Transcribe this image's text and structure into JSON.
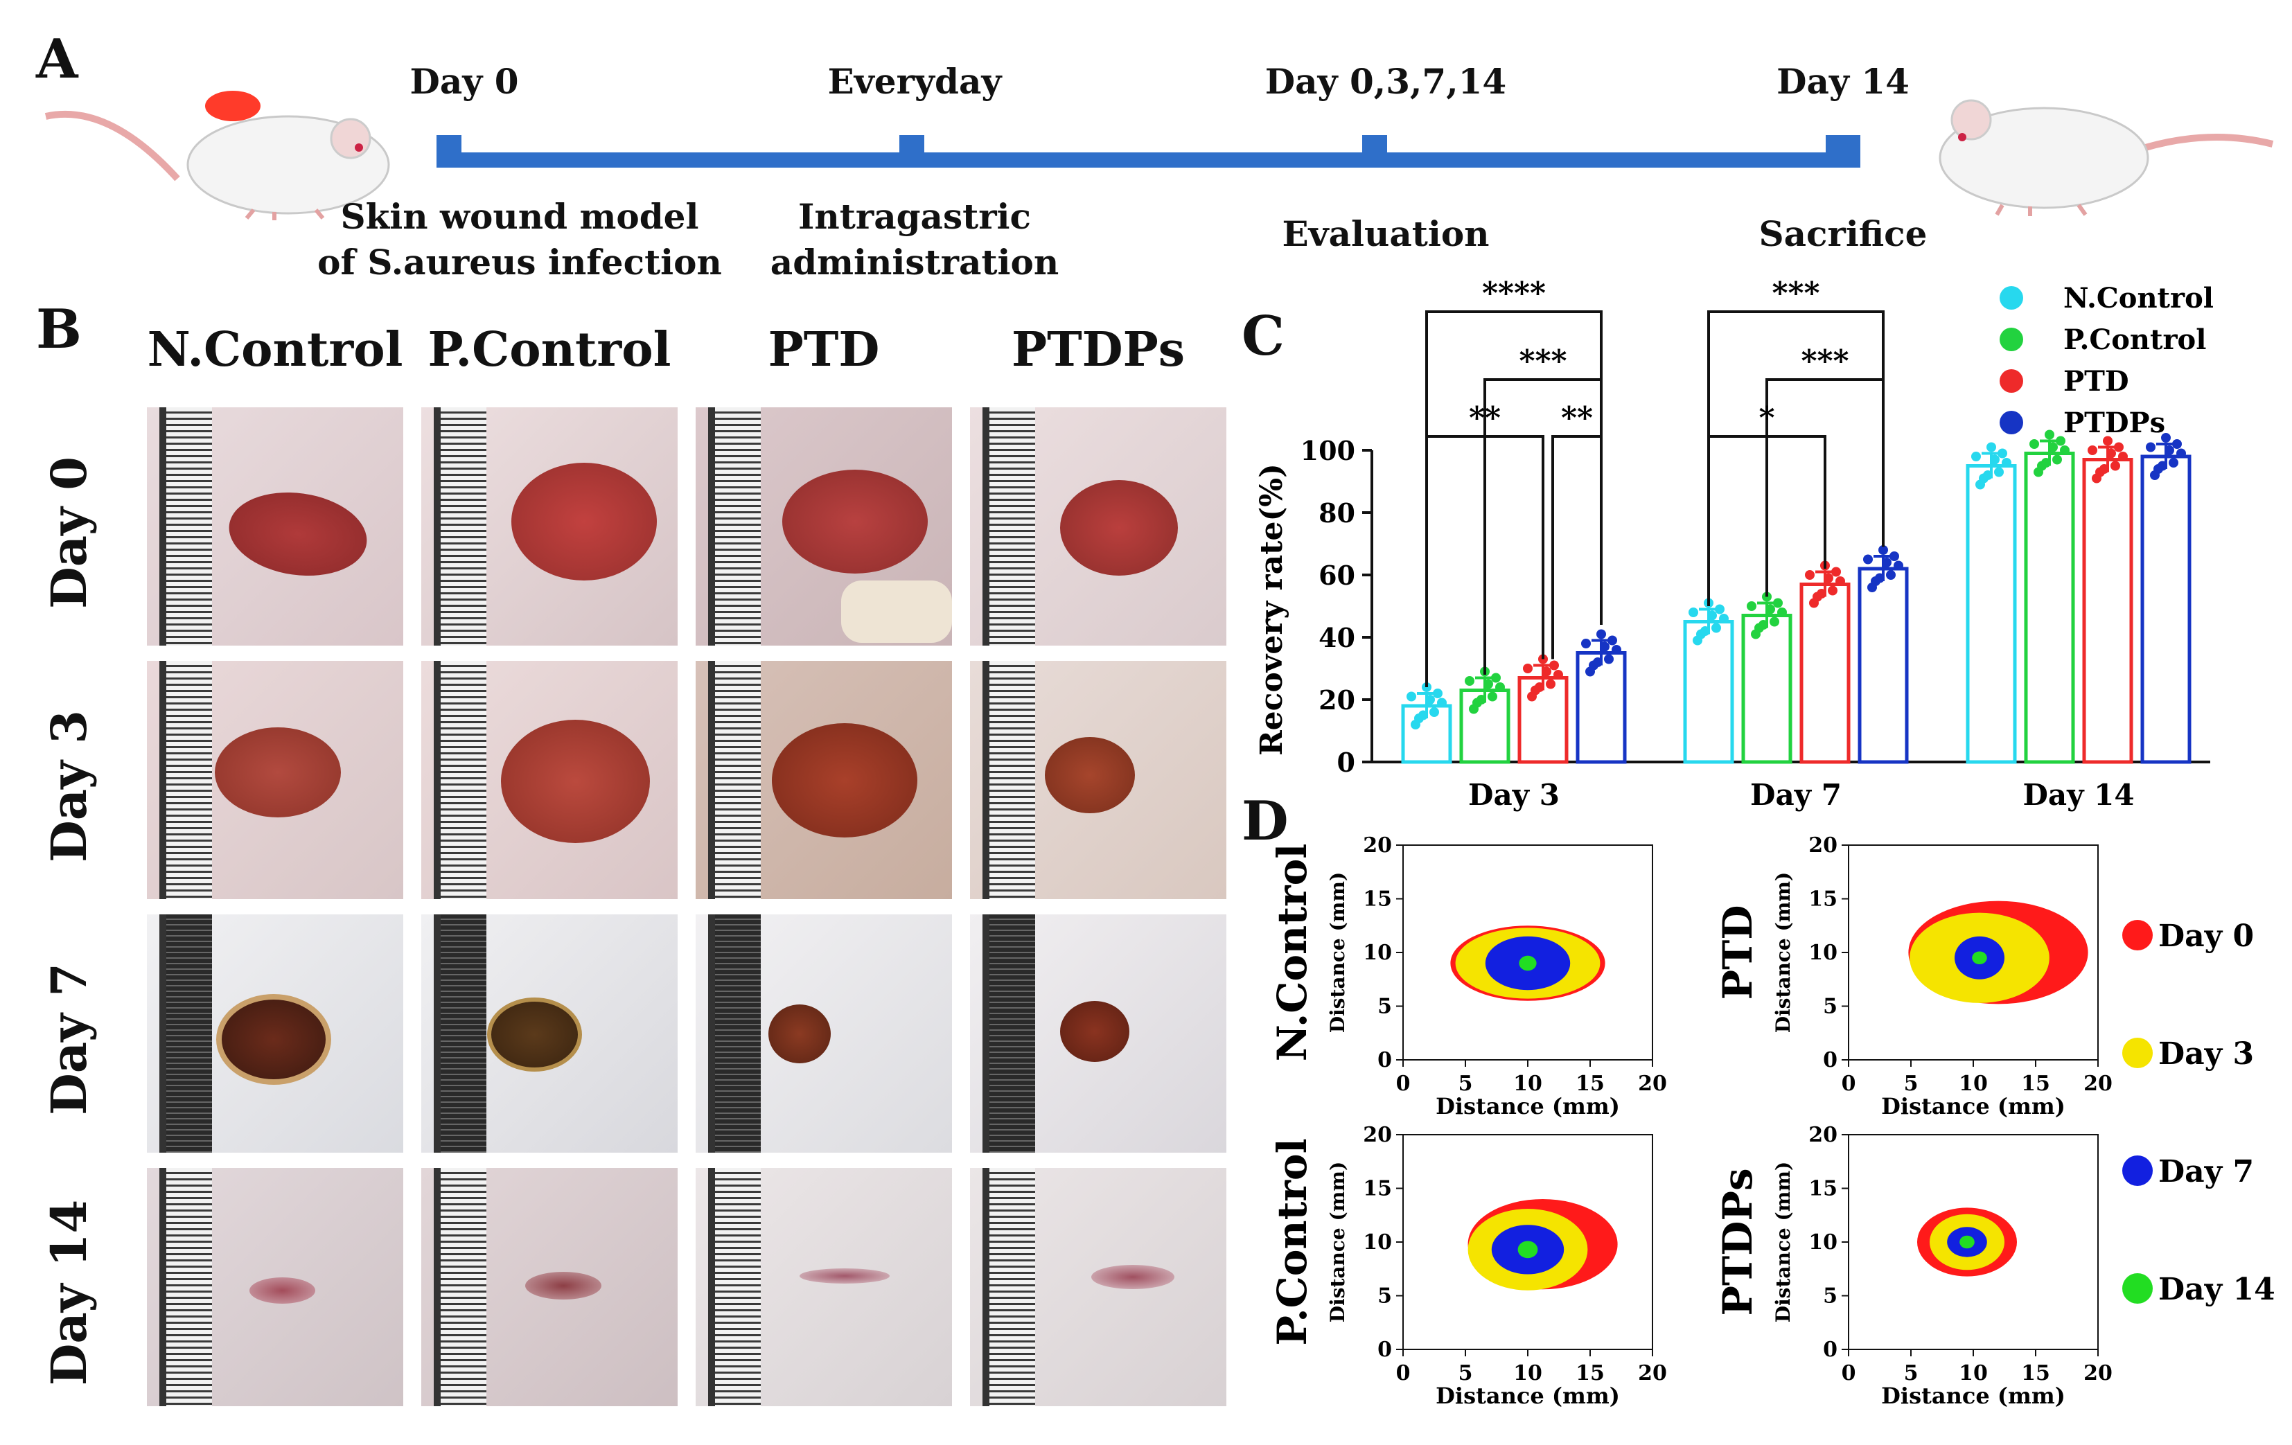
{
  "panels": {
    "a": "A",
    "b": "B",
    "c": "C",
    "d": "D"
  },
  "timeline": {
    "top_labels": [
      "Day 0",
      "Everyday",
      "Day 0,3,7,14",
      "Day 14"
    ],
    "bottom_labels": [
      {
        "line1": "Skin wound model",
        "line2": "of S.aureus infection"
      },
      {
        "line1": "Intragastric",
        "line2": "administration"
      },
      {
        "line1": "Evaluation",
        "line2": ""
      },
      {
        "line1": "Sacrifice",
        "line2": ""
      }
    ],
    "bar_color": "#2f6fc9"
  },
  "photo_grid": {
    "columns": [
      "N.Control",
      "P.Control",
      "PTD",
      "PTDPs"
    ],
    "rows": [
      "Day 0",
      "Day 3",
      "Day 7",
      "Day 14"
    ]
  },
  "chart_data": [
    {
      "type": "bar",
      "ylabel": "Recovery rate(%)",
      "ylim": [
        0,
        100
      ],
      "yticks": [
        "0",
        "20",
        "40",
        "60",
        "80",
        "100"
      ],
      "categories": [
        "Day 3",
        "Day 7",
        "Day 14"
      ],
      "series": [
        {
          "name": "N.Control",
          "color": "#27d8ee",
          "values": [
            18,
            45,
            95
          ]
        },
        {
          "name": "P.Control",
          "color": "#22d23f",
          "values": [
            23,
            47,
            99
          ]
        },
        {
          "name": "PTD",
          "color": "#ee2a2a",
          "values": [
            27,
            57,
            97
          ]
        },
        {
          "name": "PTDPs",
          "color": "#1634c4",
          "values": [
            35,
            62,
            98
          ]
        }
      ],
      "significance": {
        "day3": [
          "****",
          "***",
          "**",
          "**"
        ],
        "day7": [
          "***",
          "***",
          "*"
        ]
      }
    },
    {
      "type": "scatter",
      "description_type": "wound-contour",
      "xlabel": "Distance (mm)",
      "ylabel": "Distance (mm)",
      "xlim": [
        0,
        20
      ],
      "ylim": [
        0,
        20
      ],
      "ticks": [
        "0",
        "5",
        "10",
        "15",
        "20"
      ],
      "plots": [
        "N.Control",
        "PTD",
        "P.Control",
        "PTDPs"
      ],
      "legend": [
        {
          "label": "Day 0",
          "color": "#ff1a1a"
        },
        {
          "label": "Day 3",
          "color": "#f5e400"
        },
        {
          "label": "Day 7",
          "color": "#1220e0"
        },
        {
          "label": "Day 14",
          "color": "#22dd22"
        }
      ]
    }
  ]
}
